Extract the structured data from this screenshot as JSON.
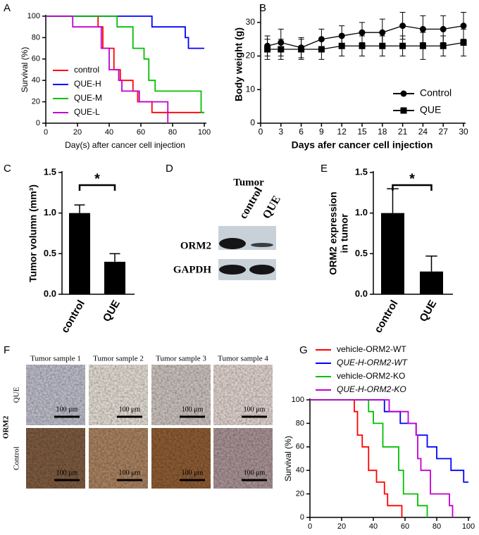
{
  "chart_data": [
    {
      "panel_label": "A",
      "type": "step",
      "xlabel": "Day(s) after cancer cell injection",
      "ylabel": "Survival (%)",
      "xlim": [
        0,
        100
      ],
      "ylim": [
        0,
        100
      ],
      "xticks": [
        0,
        20,
        40,
        60,
        80,
        100
      ],
      "yticks": [
        0,
        20,
        40,
        60,
        80,
        100
      ],
      "legend": "lower left",
      "series": [
        {
          "name": "control",
          "color": "#ff0000",
          "x": [
            0,
            33,
            36,
            43,
            47,
            55,
            58,
            67,
            100
          ],
          "values": [
            100,
            90,
            70,
            50,
            40,
            30,
            20,
            10,
            10
          ]
        },
        {
          "name": "QUE-H",
          "color": "#0000ff",
          "x": [
            0,
            67,
            88,
            90,
            100
          ],
          "values": [
            100,
            90,
            80,
            70,
            70
          ]
        },
        {
          "name": "QUE-M",
          "color": "#00c000",
          "x": [
            0,
            45,
            55,
            62,
            65,
            69,
            98,
            100
          ],
          "values": [
            100,
            90,
            70,
            60,
            40,
            30,
            10,
            10
          ]
        },
        {
          "name": "QUE-L",
          "color": "#c000d0",
          "x": [
            0,
            17,
            35,
            40,
            46,
            48,
            59,
            77
          ],
          "values": [
            100,
            90,
            70,
            50,
            40,
            30,
            20,
            0
          ]
        }
      ]
    },
    {
      "panel_label": "B",
      "type": "line",
      "xlabel": "Days afer cancer cell injection",
      "ylabel": "Body weight (g)",
      "xlim": [
        0,
        30
      ],
      "ylim": [
        0,
        35
      ],
      "xticks": [
        0,
        3,
        6,
        9,
        12,
        15,
        18,
        21,
        24,
        27,
        30
      ],
      "yticks": [
        0,
        10,
        20,
        30
      ],
      "legend": "lower right",
      "series": [
        {
          "name": "Control",
          "color": "#000000",
          "marker": "circle",
          "x": [
            1,
            3,
            6,
            9,
            12,
            15,
            18,
            21,
            24,
            27,
            30
          ],
          "values": [
            23,
            24,
            22.5,
            25,
            26,
            27,
            27,
            29,
            28,
            28,
            29
          ],
          "errors": [
            3,
            4,
            3,
            3,
            3,
            3,
            4,
            4,
            4,
            4,
            4
          ]
        },
        {
          "name": "QUE",
          "color": "#000000",
          "marker": "square",
          "x": [
            1,
            3,
            6,
            9,
            12,
            15,
            18,
            21,
            24,
            27,
            30
          ],
          "values": [
            22,
            22,
            22,
            22,
            23,
            23,
            23,
            23,
            23,
            23,
            24
          ],
          "errors": [
            3,
            3,
            3,
            3,
            3,
            3,
            3,
            3,
            4,
            3,
            4
          ]
        }
      ]
    },
    {
      "panel_label": "C",
      "type": "bar",
      "ylabel": "Tumor volumn (mm³)",
      "categories": [
        "control",
        "QUE"
      ],
      "values": [
        1.0,
        0.4
      ],
      "errors": [
        0.1,
        0.1
      ],
      "color": "#000000",
      "ylim": [
        0,
        1.5
      ],
      "yticks": [
        {
          "value": 0,
          "label": "0.0"
        },
        {
          "value": 0.5,
          "label": "0.5"
        },
        {
          "value": 1,
          "label": "1.0"
        },
        {
          "value": 1.5,
          "label": "1.5"
        }
      ],
      "significance": "*"
    },
    {
      "panel_label": "E",
      "type": "bar",
      "ylabel": [
        "ORM2 expression",
        "in tumor"
      ],
      "categories": [
        "control",
        "QUE"
      ],
      "values": [
        1.0,
        0.28
      ],
      "errors": [
        0.3,
        0.19
      ],
      "color": "#000000",
      "ylim": [
        0,
        1.5
      ],
      "yticks": [
        {
          "value": 0,
          "label": "0.0"
        },
        {
          "value": 0.5,
          "label": "0.5"
        },
        {
          "value": 1,
          "label": "1.0"
        },
        {
          "value": 1.5,
          "label": "1.5"
        }
      ],
      "significance": "*"
    },
    {
      "panel_label": "G",
      "type": "step",
      "xlabel": "Day(s) after cancer cell injection",
      "ylabel": "Survival (%)",
      "xlim": [
        0,
        100
      ],
      "ylim": [
        0,
        100
      ],
      "xticks": [
        0,
        20,
        40,
        60,
        80,
        100
      ],
      "yticks": [
        0,
        20,
        40,
        60,
        80,
        100
      ],
      "legend": "top",
      "series": [
        {
          "name": "vehicle-ORM2-WT",
          "color": "#ff0000",
          "font_style": "normal",
          "x": [
            0,
            28,
            30,
            33,
            37,
            42,
            47,
            49,
            58
          ],
          "values": [
            100,
            90,
            70,
            60,
            40,
            30,
            20,
            10,
            0
          ]
        },
        {
          "name": "QUE-H-ORM2-WT",
          "color": "#0000ff",
          "font_style": "italic",
          "x": [
            0,
            47,
            57,
            67,
            74,
            80,
            89,
            97,
            100
          ],
          "values": [
            100,
            90,
            80,
            70,
            60,
            50,
            40,
            30,
            30
          ]
        },
        {
          "name": "vehicle-ORM2-KO",
          "color": "#00c000",
          "font_style": "normal",
          "x": [
            0,
            37,
            40,
            46,
            56,
            59,
            68,
            74
          ],
          "values": [
            100,
            90,
            80,
            60,
            40,
            20,
            10,
            0
          ]
        },
        {
          "name": "QUE-H-ORM2-KO",
          "color": "#c000d0",
          "font_style": "italic",
          "x": [
            0,
            50,
            62,
            67,
            68,
            70,
            76,
            88,
            90
          ],
          "values": [
            100,
            90,
            80,
            70,
            50,
            40,
            20,
            10,
            0
          ]
        }
      ]
    }
  ],
  "blot": {
    "panel_label": "D",
    "title": "Tumor",
    "lanes": [
      "control",
      "QUE"
    ],
    "bands": [
      "ORM2",
      "GAPDH"
    ]
  },
  "histology": {
    "panel_label": "F",
    "samples": [
      "Tumor sample 1",
      "Tumor sample 2",
      "Tumor sample 3",
      "Tumor sample 4"
    ],
    "marker": "ORM2",
    "rows": [
      "QUE",
      "Control"
    ],
    "scale_bar": "100 μm"
  }
}
